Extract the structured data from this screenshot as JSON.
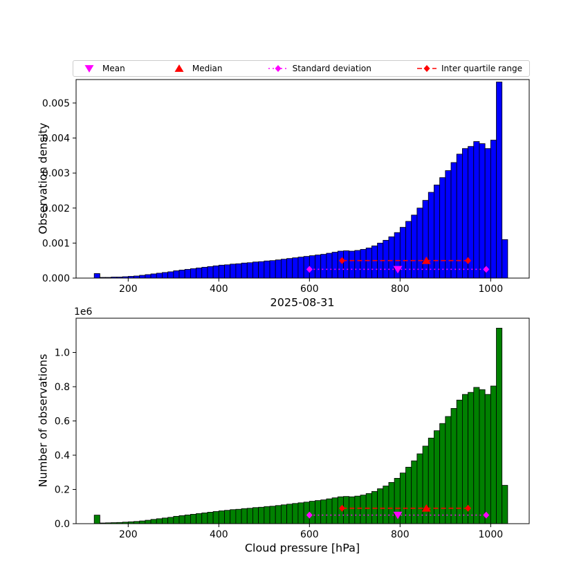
{
  "figure": {
    "legend": {
      "items": [
        {
          "label": "Mean",
          "marker": "triangle-down",
          "color": "#ff00ff"
        },
        {
          "label": "Median",
          "marker": "triangle-up",
          "color": "#ff0000"
        },
        {
          "label": "Standard deviation",
          "marker": "diamond-dotted-line",
          "color": "#ff00ff"
        },
        {
          "label": "Inter quartile range",
          "marker": "diamond-dashed-line",
          "color": "#ff0000"
        }
      ]
    }
  },
  "chart_data": [
    {
      "type": "bar",
      "name": "observation-density",
      "ylabel": "Observation density",
      "xlabel": "",
      "bar_color": "#0000ff",
      "bar_edge_color": "#000000",
      "grid": false,
      "xlim": [
        85,
        1085
      ],
      "ylim": [
        0,
        0.00567
      ],
      "xticks": [
        200,
        400,
        600,
        800,
        1000
      ],
      "xtick_labels": [
        "200",
        "400",
        "600",
        "800",
        "1000"
      ],
      "yticks": [
        0,
        0.001,
        0.002,
        0.003,
        0.004,
        0.005
      ],
      "ytick_labels": [
        "0.000",
        "0.001",
        "0.002",
        "0.003",
        "0.004",
        "0.005"
      ],
      "bin_start": 125,
      "bin_width": 12.5,
      "values": [
        0.00013,
        2e-05,
        2e-05,
        3e-05,
        3e-05,
        4e-05,
        5e-05,
        6e-05,
        8e-05,
        0.0001,
        0.00012,
        0.00014,
        0.00016,
        0.00018,
        0.00021,
        0.00023,
        0.00025,
        0.00027,
        0.00029,
        0.00031,
        0.00033,
        0.00035,
        0.00037,
        0.00038,
        0.0004,
        0.00041,
        0.00043,
        0.00044,
        0.00046,
        0.00047,
        0.00049,
        0.0005,
        0.00052,
        0.00054,
        0.00056,
        0.00058,
        0.0006,
        0.00062,
        0.00064,
        0.00066,
        0.00068,
        0.00071,
        0.00074,
        0.00077,
        0.00078,
        0.00077,
        0.00079,
        0.00082,
        0.00086,
        0.00092,
        0.001,
        0.00108,
        0.00118,
        0.0013,
        0.00145,
        0.00162,
        0.0018,
        0.002,
        0.00222,
        0.00245,
        0.00266,
        0.00287,
        0.00307,
        0.0033,
        0.00354,
        0.0037,
        0.00376,
        0.0039,
        0.00384,
        0.0037,
        0.00394,
        0.0056,
        0.0011
      ],
      "annotations": {
        "mean": {
          "x": 795,
          "y": 0.00025
        },
        "median": {
          "x": 858,
          "y": 0.0005
        },
        "std_range": {
          "x1": 600,
          "x2": 990,
          "y": 0.00025
        },
        "iqr_range": {
          "x1": 672,
          "x2": 950,
          "y": 0.0005
        }
      }
    },
    {
      "type": "bar",
      "name": "number-of-observations",
      "title": "2025-08-31",
      "ylabel": "Number of observations",
      "xlabel": "Cloud pressure [hPa]",
      "y_offset_text": "1e6",
      "bar_color": "#008000",
      "bar_edge_color": "#000000",
      "grid": false,
      "xlim": [
        85,
        1085
      ],
      "ylim": [
        0,
        1.2
      ],
      "xticks": [
        200,
        400,
        600,
        800,
        1000
      ],
      "xtick_labels": [
        "200",
        "400",
        "600",
        "800",
        "1000"
      ],
      "yticks": [
        0,
        0.2,
        0.4,
        0.6,
        0.8,
        1.0
      ],
      "ytick_labels": [
        "0.0",
        "0.2",
        "0.4",
        "0.6",
        "0.8",
        "1.0"
      ],
      "bin_start": 125,
      "bin_width": 12.5,
      "values": [
        0.05,
        0.004,
        0.005,
        0.006,
        0.007,
        0.009,
        0.011,
        0.013,
        0.016,
        0.02,
        0.025,
        0.029,
        0.033,
        0.037,
        0.043,
        0.047,
        0.051,
        0.055,
        0.059,
        0.063,
        0.067,
        0.071,
        0.075,
        0.078,
        0.082,
        0.084,
        0.088,
        0.09,
        0.094,
        0.096,
        0.1,
        0.102,
        0.106,
        0.11,
        0.114,
        0.118,
        0.122,
        0.126,
        0.131,
        0.135,
        0.139,
        0.145,
        0.151,
        0.157,
        0.159,
        0.157,
        0.161,
        0.167,
        0.176,
        0.188,
        0.204,
        0.22,
        0.241,
        0.265,
        0.296,
        0.33,
        0.367,
        0.408,
        0.453,
        0.5,
        0.543,
        0.585,
        0.626,
        0.673,
        0.722,
        0.755,
        0.767,
        0.796,
        0.783,
        0.755,
        0.804,
        1.142,
        0.224
      ],
      "annotations": {
        "mean": {
          "x": 795,
          "y": 0.05
        },
        "median": {
          "x": 858,
          "y": 0.09
        },
        "std_range": {
          "x1": 600,
          "x2": 990,
          "y": 0.05
        },
        "iqr_range": {
          "x1": 672,
          "x2": 950,
          "y": 0.09
        }
      }
    }
  ]
}
